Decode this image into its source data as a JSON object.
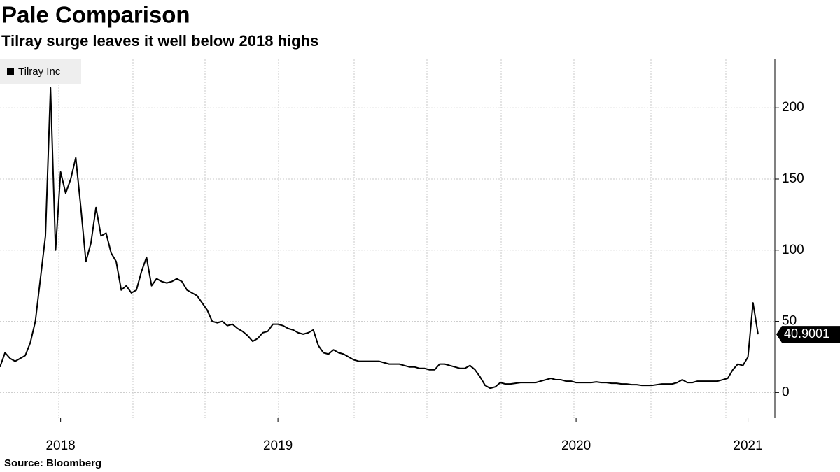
{
  "chart_data": {
    "type": "line",
    "title": "Pale Comparison",
    "subtitle": "Tilray surge leaves it well below 2018 highs",
    "source": "Source: Bloomberg",
    "categories": [
      null,
      null,
      null,
      null,
      null,
      null,
      null,
      null,
      null,
      null,
      null,
      null,
      "2018",
      null,
      null,
      null,
      null,
      null,
      null,
      null,
      null,
      null,
      null,
      null,
      null,
      null,
      null,
      null,
      null,
      null,
      null,
      null,
      null,
      null,
      null,
      null,
      null,
      null,
      null,
      null,
      null,
      null,
      null,
      null,
      null,
      null,
      null,
      null,
      null,
      null,
      null,
      null,
      null,
      null,
      null,
      "2019",
      null,
      null,
      null,
      null,
      null,
      null,
      null,
      null,
      null,
      null,
      null,
      null,
      null,
      null,
      null,
      null,
      null,
      null,
      null,
      null,
      null,
      null,
      null,
      null,
      null,
      null,
      null,
      null,
      null,
      null,
      null,
      null,
      null,
      null,
      null,
      null,
      null,
      null,
      null,
      null,
      null,
      null,
      null,
      null,
      null,
      null,
      null,
      null,
      null,
      null,
      null,
      null,
      null,
      null,
      null,
      null,
      null,
      null,
      "2020",
      null,
      null,
      null,
      null,
      null,
      null,
      null,
      null,
      null,
      null,
      null,
      null,
      null,
      null,
      null,
      null,
      null,
      null,
      null,
      null,
      null,
      null,
      null,
      null,
      null,
      null,
      null,
      null,
      null,
      null,
      null,
      null,
      null,
      "2021",
      null,
      null
    ],
    "series": [
      {
        "name": "Tilray Inc",
        "color": "#000000",
        "values": [
          18,
          28,
          24,
          22,
          24,
          26,
          35,
          50,
          80,
          110,
          214,
          100,
          155,
          140,
          150,
          165,
          130,
          92,
          105,
          130,
          110,
          112,
          98,
          92,
          72,
          75,
          70,
          72,
          85,
          95,
          75,
          80,
          78,
          77,
          78,
          80,
          78,
          72,
          70,
          68,
          63,
          58,
          50,
          49,
          50,
          47,
          48,
          45,
          43,
          40,
          36,
          38,
          42,
          43,
          48,
          48,
          47,
          45,
          44,
          42,
          41,
          42,
          44,
          33,
          28,
          27,
          30,
          28,
          27,
          25,
          23,
          22,
          22,
          22,
          22,
          22,
          21,
          20,
          20,
          20,
          19,
          18,
          18,
          17,
          17,
          16,
          16,
          20,
          20,
          19,
          18,
          17,
          17,
          19,
          16,
          11,
          5,
          3,
          4,
          7,
          6,
          6,
          6.5,
          7,
          7,
          7,
          7,
          8,
          9,
          10,
          9,
          9,
          8,
          8,
          7,
          7,
          7,
          7,
          7.5,
          7,
          7,
          6.5,
          6.5,
          6,
          6,
          5.5,
          5.5,
          5,
          5,
          5,
          5.5,
          6,
          6,
          6,
          7,
          9,
          7,
          7,
          8,
          8,
          8,
          8,
          8,
          9,
          10,
          16,
          20,
          19,
          25,
          63,
          40.9001
        ]
      }
    ],
    "ylim": [
      -18,
      234
    ],
    "yticks": [
      0,
      50,
      100,
      150,
      200
    ],
    "grid": true,
    "legend": "top-left"
  }
}
